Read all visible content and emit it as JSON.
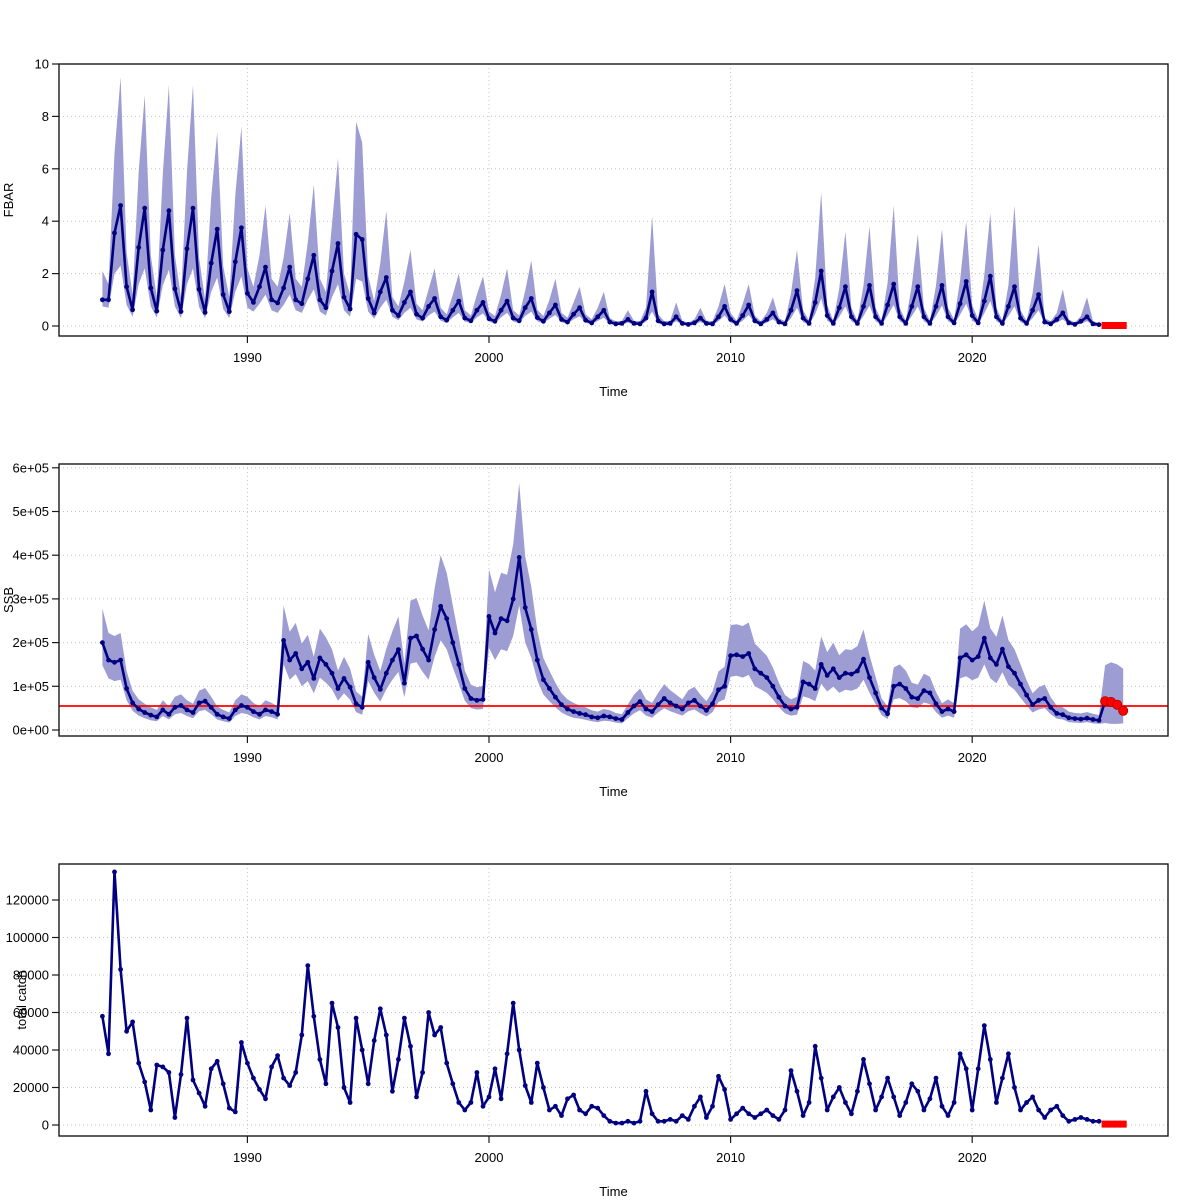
{
  "figure": {
    "background": "#ffffff",
    "colors": {
      "series_line": "#000080",
      "confidence_band": "#9d9dd3",
      "forecast_marker": "#ff0000",
      "reference_line": "#ff0000",
      "grid": "#c4c4c4",
      "axis": "#1a1a1a"
    }
  },
  "chart_data": [
    {
      "type": "line",
      "name": "fbar",
      "ylabel": "FBAR",
      "xlabel": "Time",
      "unit_scale": 1,
      "x_start": 1984,
      "x_step": 0.25,
      "ylim": [
        0,
        10
      ],
      "yticks": [
        0,
        2,
        4,
        6,
        8,
        10
      ],
      "ytick_labels": [
        "0",
        "2",
        "4",
        "6",
        "8",
        "10"
      ],
      "xticks": [
        1990,
        2000,
        2010,
        2020
      ],
      "grid": true,
      "y": [
        1.0,
        1.0,
        3.55,
        4.6,
        1.5,
        0.62,
        3.0,
        4.5,
        1.45,
        0.57,
        2.9,
        4.4,
        1.42,
        0.55,
        2.95,
        4.5,
        1.4,
        0.52,
        2.4,
        3.7,
        1.2,
        0.55,
        2.45,
        3.75,
        1.25,
        0.9,
        1.5,
        2.25,
        1.0,
        0.88,
        1.45,
        2.25,
        1.0,
        0.85,
        1.8,
        2.7,
        1.0,
        0.7,
        2.1,
        3.15,
        1.1,
        0.65,
        3.5,
        3.3,
        1.05,
        0.5,
        1.3,
        1.85,
        0.6,
        0.4,
        0.9,
        1.3,
        0.45,
        0.3,
        0.75,
        1.05,
        0.35,
        0.22,
        0.6,
        0.95,
        0.3,
        0.2,
        0.6,
        0.9,
        0.28,
        0.18,
        0.6,
        0.95,
        0.3,
        0.2,
        0.7,
        1.05,
        0.32,
        0.18,
        0.5,
        0.8,
        0.25,
        0.15,
        0.45,
        0.7,
        0.22,
        0.12,
        0.35,
        0.6,
        0.15,
        0.08,
        0.1,
        0.25,
        0.1,
        0.08,
        0.3,
        1.3,
        0.2,
        0.08,
        0.1,
        0.35,
        0.1,
        0.06,
        0.12,
        0.3,
        0.1,
        0.08,
        0.35,
        0.75,
        0.25,
        0.1,
        0.4,
        0.8,
        0.2,
        0.08,
        0.25,
        0.5,
        0.15,
        0.08,
        0.6,
        1.35,
        0.3,
        0.1,
        0.9,
        2.1,
        0.4,
        0.1,
        0.7,
        1.5,
        0.35,
        0.1,
        0.75,
        1.55,
        0.35,
        0.1,
        0.8,
        1.6,
        0.35,
        0.1,
        0.75,
        1.5,
        0.35,
        0.1,
        0.75,
        1.55,
        0.35,
        0.12,
        0.85,
        1.7,
        0.4,
        0.12,
        0.95,
        1.9,
        0.35,
        0.1,
        0.75,
        1.5,
        0.3,
        0.1,
        0.6,
        1.2,
        0.15,
        0.08,
        0.25,
        0.5,
        0.12,
        0.06,
        0.18,
        0.35,
        0.08,
        0.05
      ],
      "lo": [
        0.75,
        0.7,
        2.0,
        2.3,
        0.8,
        0.35,
        1.6,
        2.2,
        0.75,
        0.32,
        1.55,
        2.15,
        0.75,
        0.3,
        1.6,
        2.2,
        0.72,
        0.3,
        1.3,
        1.85,
        0.65,
        0.3,
        1.3,
        1.9,
        0.7,
        0.55,
        0.85,
        1.2,
        0.6,
        0.5,
        0.8,
        1.2,
        0.6,
        0.5,
        1.0,
        1.4,
        0.55,
        0.4,
        1.1,
        1.6,
        0.6,
        0.35,
        1.8,
        1.7,
        0.55,
        0.28,
        0.7,
        1.0,
        0.35,
        0.22,
        0.5,
        0.7,
        0.25,
        0.17,
        0.4,
        0.55,
        0.2,
        0.12,
        0.33,
        0.5,
        0.17,
        0.11,
        0.33,
        0.48,
        0.16,
        0.1,
        0.33,
        0.5,
        0.17,
        0.11,
        0.38,
        0.55,
        0.18,
        0.1,
        0.28,
        0.42,
        0.14,
        0.08,
        0.25,
        0.37,
        0.12,
        0.07,
        0.19,
        0.32,
        0.08,
        0.04,
        0.05,
        0.13,
        0.05,
        0.04,
        0.16,
        0.55,
        0.1,
        0.04,
        0.05,
        0.18,
        0.05,
        0.03,
        0.06,
        0.15,
        0.05,
        0.04,
        0.18,
        0.4,
        0.13,
        0.05,
        0.2,
        0.42,
        0.1,
        0.04,
        0.13,
        0.26,
        0.08,
        0.04,
        0.3,
        0.7,
        0.15,
        0.05,
        0.45,
        1.05,
        0.2,
        0.05,
        0.35,
        0.75,
        0.18,
        0.05,
        0.38,
        0.78,
        0.18,
        0.05,
        0.4,
        0.8,
        0.18,
        0.05,
        0.38,
        0.75,
        0.18,
        0.05,
        0.38,
        0.78,
        0.18,
        0.06,
        0.43,
        0.85,
        0.2,
        0.06,
        0.48,
        0.95,
        0.18,
        0.05,
        0.38,
        0.75,
        0.15,
        0.05,
        0.3,
        0.6,
        0.08,
        0.04,
        0.13,
        0.25,
        0.06,
        0.03,
        0.09,
        0.18,
        0.04,
        0.02
      ],
      "hi": [
        2.1,
        1.6,
        6.6,
        9.5,
        2.8,
        1.2,
        5.9,
        8.8,
        2.7,
        1.1,
        5.8,
        9.2,
        2.7,
        1.1,
        5.9,
        9.2,
        2.6,
        1.0,
        4.9,
        7.4,
        2.3,
        1.1,
        5.0,
        7.6,
        2.2,
        1.5,
        2.7,
        4.6,
        1.8,
        1.5,
        2.6,
        4.3,
        1.8,
        1.5,
        3.2,
        5.4,
        1.8,
        1.3,
        3.9,
        6.4,
        2.0,
        1.2,
        7.8,
        7.0,
        1.9,
        0.95,
        2.4,
        4.4,
        1.1,
        0.75,
        1.7,
        2.9,
        0.85,
        0.6,
        1.4,
        2.2,
        0.7,
        0.45,
        1.2,
        2.0,
        0.6,
        0.4,
        1.2,
        1.9,
        0.55,
        0.38,
        1.2,
        2.2,
        0.6,
        0.4,
        1.35,
        2.5,
        0.62,
        0.38,
        1.0,
        1.8,
        0.5,
        0.32,
        0.9,
        1.5,
        0.45,
        0.26,
        0.7,
        1.3,
        0.3,
        0.18,
        0.2,
        0.6,
        0.2,
        0.18,
        0.7,
        4.2,
        0.45,
        0.18,
        0.2,
        0.9,
        0.2,
        0.13,
        0.25,
        0.7,
        0.2,
        0.18,
        0.75,
        1.6,
        0.5,
        0.2,
        0.85,
        1.6,
        0.4,
        0.18,
        0.5,
        1.1,
        0.3,
        0.18,
        1.25,
        2.9,
        0.6,
        0.2,
        1.85,
        5.1,
        0.8,
        0.2,
        1.45,
        3.6,
        0.7,
        0.2,
        1.55,
        3.8,
        0.7,
        0.2,
        1.65,
        4.6,
        0.7,
        0.2,
        1.55,
        3.5,
        0.7,
        0.2,
        1.55,
        3.7,
        0.7,
        0.25,
        1.75,
        4.0,
        0.8,
        0.25,
        1.95,
        4.3,
        0.7,
        0.2,
        1.55,
        4.6,
        0.6,
        0.2,
        1.25,
        3.1,
        0.3,
        0.18,
        0.5,
        1.4,
        0.25,
        0.13,
        0.38,
        1.1,
        0.18,
        0.12
      ],
      "forecast": {
        "x_start": 2025.5,
        "x_step": 0.25,
        "y": [
          0.02,
          0.02,
          0.02,
          0.02
        ],
        "marker": "square",
        "connected": false
      }
    },
    {
      "type": "line",
      "name": "ssb",
      "ylabel": "SSB",
      "xlabel": "Time",
      "unit_scale": 1000,
      "x_start": 1984,
      "x_step": 0.25,
      "ylim": [
        0,
        600
      ],
      "yticks": [
        0,
        100,
        200,
        300,
        400,
        500,
        600
      ],
      "ytick_labels": [
        "0e+00",
        "1e+05",
        "2e+05",
        "3e+05",
        "4e+05",
        "5e+05",
        "6e+05"
      ],
      "xticks": [
        1990,
        2000,
        2010,
        2020
      ],
      "grid": true,
      "refline": 55,
      "y": [
        200,
        160,
        155,
        160,
        95,
        62,
        48,
        40,
        34,
        30,
        46,
        36,
        52,
        56,
        46,
        40,
        62,
        66,
        52,
        36,
        30,
        26,
        46,
        56,
        52,
        42,
        36,
        46,
        42,
        36,
        205,
        160,
        175,
        140,
        155,
        118,
        165,
        150,
        130,
        95,
        118,
        98,
        60,
        52,
        155,
        120,
        93,
        130,
        160,
        184,
        107,
        210,
        215,
        185,
        160,
        230,
        283,
        255,
        200,
        150,
        95,
        72,
        68,
        70,
        260,
        222,
        255,
        250,
        300,
        395,
        280,
        230,
        160,
        115,
        95,
        75,
        58,
        48,
        42,
        38,
        35,
        30,
        28,
        32,
        30,
        26,
        24,
        40,
        55,
        65,
        48,
        42,
        58,
        72,
        62,
        55,
        48,
        62,
        68,
        55,
        45,
        60,
        92,
        100,
        170,
        172,
        168,
        175,
        140,
        130,
        120,
        100,
        75,
        55,
        48,
        52,
        110,
        105,
        95,
        150,
        125,
        140,
        120,
        130,
        128,
        135,
        162,
        120,
        85,
        50,
        37,
        100,
        105,
        95,
        75,
        72,
        90,
        85,
        60,
        42,
        48,
        42,
        165,
        172,
        160,
        168,
        210,
        165,
        150,
        185,
        145,
        130,
        105,
        80,
        58,
        68,
        72,
        52,
        38,
        35,
        28,
        26,
        25,
        27,
        24,
        22
      ],
      "lo": [
        148,
        118,
        112,
        115,
        68,
        44,
        33,
        27,
        22,
        20,
        32,
        24,
        36,
        39,
        32,
        27,
        43,
        46,
        36,
        24,
        20,
        17,
        32,
        39,
        36,
        29,
        24,
        32,
        29,
        24,
        150,
        115,
        128,
        100,
        112,
        84,
        120,
        108,
        93,
        67,
        84,
        69,
        41,
        35,
        112,
        85,
        65,
        93,
        115,
        133,
        75,
        152,
        155,
        133,
        115,
        167,
        205,
        185,
        143,
        106,
        67,
        50,
        47,
        48,
        188,
        160,
        185,
        180,
        215,
        285,
        200,
        165,
        114,
        81,
        66,
        52,
        40,
        33,
        28,
        26,
        23,
        20,
        18,
        21,
        20,
        17,
        15,
        27,
        38,
        45,
        33,
        28,
        40,
        50,
        43,
        38,
        33,
        43,
        47,
        38,
        31,
        41,
        64,
        70,
        122,
        124,
        120,
        126,
        100,
        93,
        85,
        70,
        52,
        38,
        33,
        35,
        77,
        73,
        66,
        106,
        88,
        99,
        85,
        92,
        90,
        95,
        115,
        85,
        59,
        34,
        25,
        70,
        73,
        66,
        52,
        50,
        63,
        59,
        41,
        28,
        33,
        28,
        118,
        123,
        114,
        120,
        150,
        118,
        107,
        132,
        103,
        92,
        74,
        56,
        40,
        47,
        50,
        36,
        26,
        24,
        18,
        17,
        16,
        18,
        15,
        14
      ],
      "hi": [
        278,
        222,
        215,
        222,
        135,
        90,
        70,
        60,
        52,
        46,
        68,
        54,
        76,
        82,
        68,
        60,
        90,
        96,
        76,
        54,
        46,
        40,
        68,
        82,
        76,
        62,
        54,
        68,
        62,
        54,
        285,
        225,
        245,
        198,
        218,
        168,
        232,
        212,
        185,
        136,
        168,
        140,
        88,
        76,
        220,
        172,
        135,
        186,
        226,
        260,
        153,
        296,
        302,
        262,
        228,
        324,
        400,
        360,
        285,
        214,
        136,
        104,
        98,
        101,
        368,
        315,
        360,
        355,
        425,
        565,
        398,
        328,
        228,
        164,
        136,
        108,
        84,
        70,
        62,
        56,
        52,
        45,
        42,
        48,
        45,
        39,
        36,
        59,
        81,
        95,
        70,
        62,
        85,
        105,
        91,
        81,
        70,
        91,
        99,
        81,
        66,
        88,
        134,
        145,
        240,
        242,
        238,
        246,
        198,
        184,
        170,
        143,
        108,
        80,
        70,
        76,
        158,
        151,
        136,
        214,
        178,
        200,
        171,
        185,
        183,
        192,
        230,
        171,
        122,
        72,
        54,
        143,
        150,
        136,
        108,
        104,
        129,
        122,
        87,
        61,
        70,
        61,
        232,
        242,
        226,
        238,
        296,
        233,
        213,
        262,
        206,
        185,
        150,
        114,
        84,
        98,
        104,
        75,
        56,
        52,
        42,
        39,
        38,
        41,
        37,
        34
      ],
      "forecast": {
        "x_start": 2025.5,
        "x_step": 0.25,
        "y": [
          66,
          64,
          58,
          44
        ],
        "lo": [
          16,
          14,
          14,
          15
        ],
        "hi": [
          148,
          155,
          150,
          140
        ],
        "marker": "circle",
        "connected": true
      }
    },
    {
      "type": "line",
      "name": "total-catch",
      "ylabel": "total catch",
      "xlabel": "Time",
      "unit_scale": 1000,
      "x_start": 1984,
      "x_step": 0.25,
      "ylim": [
        0,
        130
      ],
      "yticks": [
        0,
        20,
        40,
        60,
        80,
        100,
        120
      ],
      "ytick_labels": [
        "0",
        "20000",
        "40000",
        "60000",
        "80000",
        "100000",
        "120000"
      ],
      "xticks": [
        1990,
        2000,
        2010,
        2020
      ],
      "grid": true,
      "y": [
        58,
        38,
        135,
        83,
        50,
        55,
        33,
        23,
        8,
        32,
        31,
        28,
        4,
        27,
        57,
        24,
        17,
        10,
        30,
        34,
        22,
        9,
        7,
        44,
        33,
        25,
        19,
        14,
        31,
        37,
        25,
        21,
        28,
        48,
        85,
        58,
        35,
        22,
        65,
        52,
        20,
        12,
        57,
        40,
        22,
        45,
        62,
        48,
        18,
        35,
        57,
        42,
        15,
        28,
        60,
        48,
        52,
        33,
        22,
        12,
        8,
        12,
        28,
        10,
        15,
        30,
        14,
        38,
        65,
        40,
        21,
        12,
        33,
        20,
        8,
        10,
        5,
        14,
        16,
        8,
        6,
        10,
        9,
        5,
        2,
        1,
        1,
        2,
        1,
        2,
        18,
        6,
        2,
        2,
        3,
        2,
        5,
        3,
        10,
        15,
        4,
        10,
        26,
        19,
        3,
        6,
        9,
        6,
        4,
        6,
        8,
        5,
        3,
        8,
        29,
        18,
        5,
        12,
        42,
        25,
        8,
        15,
        20,
        12,
        6,
        18,
        35,
        22,
        8,
        15,
        25,
        15,
        5,
        12,
        22,
        18,
        8,
        14,
        25,
        10,
        5,
        12,
        38,
        30,
        8,
        30,
        53,
        35,
        12,
        25,
        38,
        20,
        8,
        12,
        15,
        8,
        4,
        8,
        10,
        5,
        2,
        3,
        4,
        3,
        2,
        2
      ],
      "forecast": {
        "x_start": 2025.5,
        "x_step": 0.25,
        "y": [
          0.5,
          0.5,
          0.5,
          0.5
        ],
        "marker": "square",
        "connected": false
      }
    }
  ]
}
